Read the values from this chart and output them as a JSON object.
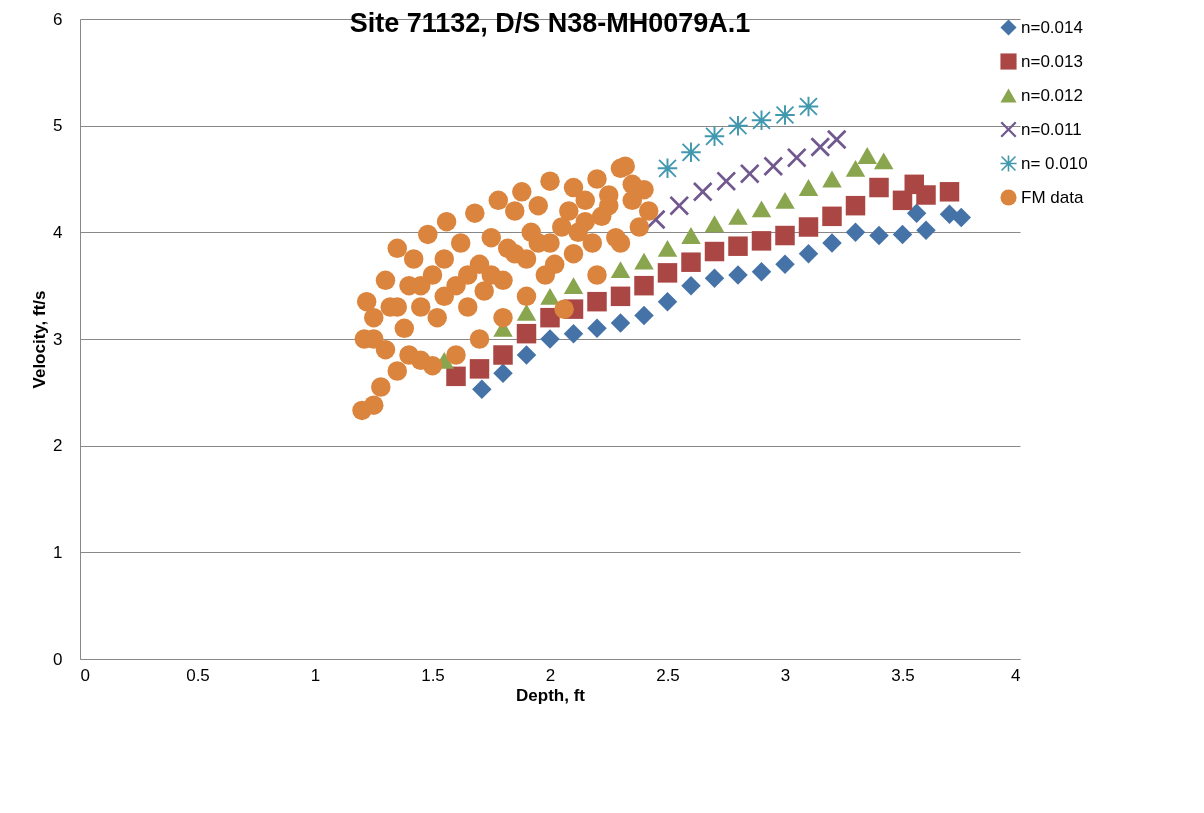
{
  "chart_data": {
    "type": "scatter",
    "title": "Site 71132, D/S  N38-MH0079A.1",
    "xlabel": "Depth, ft",
    "ylabel": "Velocity, ft/s",
    "xlim": [
      0,
      4
    ],
    "xticks": [
      0,
      0.5,
      1,
      1.5,
      2,
      2.5,
      3,
      3.5,
      4
    ],
    "ylim": [
      0,
      6
    ],
    "yticks": [
      0,
      1,
      2,
      3,
      4,
      5,
      6
    ],
    "grid": "y",
    "legend": "right",
    "series": [
      {
        "name": "n=0.014",
        "color": "#4572a7",
        "marker": "diamond",
        "x": [
          1.71,
          1.8,
          1.9,
          2.0,
          2.1,
          2.2,
          2.3,
          2.4,
          2.5,
          2.6,
          2.7,
          2.8,
          2.9,
          3.0,
          3.1,
          3.2,
          3.3,
          3.4,
          3.5,
          3.56,
          3.6,
          3.7,
          3.75
        ],
        "values": [
          2.53,
          2.68,
          2.85,
          3.0,
          3.05,
          3.1,
          3.15,
          3.22,
          3.35,
          3.5,
          3.57,
          3.6,
          3.63,
          3.7,
          3.8,
          3.9,
          4.0,
          3.97,
          3.98,
          4.18,
          4.02,
          4.17,
          4.14
        ]
      },
      {
        "name": "n=0.013",
        "color": "#aa4643",
        "marker": "square",
        "x": [
          1.6,
          1.7,
          1.8,
          1.9,
          2.0,
          2.1,
          2.2,
          2.3,
          2.4,
          2.5,
          2.6,
          2.7,
          2.8,
          2.9,
          3.0,
          3.1,
          3.2,
          3.3,
          3.4,
          3.5,
          3.55,
          3.6,
          3.7
        ],
        "values": [
          2.65,
          2.72,
          2.85,
          3.05,
          3.2,
          3.28,
          3.35,
          3.4,
          3.5,
          3.62,
          3.72,
          3.82,
          3.87,
          3.92,
          3.97,
          4.05,
          4.15,
          4.25,
          4.42,
          4.3,
          4.45,
          4.35,
          4.38
        ]
      },
      {
        "name": "n=0.012",
        "color": "#89a54e",
        "marker": "triangle",
        "x": [
          1.55,
          1.8,
          1.9,
          2.0,
          2.1,
          2.3,
          2.4,
          2.5,
          2.6,
          2.7,
          2.8,
          2.9,
          3.0,
          3.1,
          3.2,
          3.3,
          3.35,
          3.42
        ],
        "values": [
          2.8,
          3.1,
          3.25,
          3.4,
          3.5,
          3.65,
          3.73,
          3.85,
          3.97,
          4.08,
          4.15,
          4.22,
          4.3,
          4.42,
          4.5,
          4.6,
          4.72,
          4.67
        ]
      },
      {
        "name": "n=0.011",
        "color": "#71588f",
        "marker": "cross",
        "x": [
          2.45,
          2.55,
          2.65,
          2.75,
          2.85,
          2.95,
          3.05,
          3.15,
          3.22
        ],
        "values": [
          4.12,
          4.25,
          4.38,
          4.48,
          4.55,
          4.62,
          4.7,
          4.8,
          4.87
        ]
      },
      {
        "name": "n= 0.010",
        "color": "#4198af",
        "marker": "star",
        "x": [
          2.5,
          2.6,
          2.7,
          2.8,
          2.9,
          3.0,
          3.1
        ],
        "values": [
          4.6,
          4.75,
          4.9,
          5.0,
          5.05,
          5.1,
          5.18
        ]
      },
      {
        "name": "FM data",
        "color": "#db843d",
        "marker": "circle",
        "x": [
          1.2,
          1.21,
          1.22,
          1.25,
          1.25,
          1.28,
          1.3,
          1.3,
          1.32,
          1.35,
          1.35,
          1.38,
          1.4,
          1.4,
          1.42,
          1.45,
          1.45,
          1.48,
          1.5,
          1.5,
          1.52,
          1.55,
          1.56,
          1.6,
          1.6,
          1.62,
          1.65,
          1.68,
          1.7,
          1.7,
          1.72,
          1.75,
          1.78,
          1.8,
          1.8,
          1.82,
          1.85,
          1.88,
          1.9,
          1.9,
          1.92,
          1.95,
          1.98,
          2.0,
          2.0,
          2.02,
          2.06,
          2.08,
          2.1,
          2.1,
          2.12,
          2.15,
          2.18,
          2.2,
          2.2,
          2.22,
          2.25,
          2.28,
          2.3,
          2.3,
          2.32,
          2.35,
          2.38,
          2.4,
          2.42,
          1.25,
          1.35,
          1.45,
          1.55,
          1.65,
          1.75,
          1.85,
          1.95,
          2.05,
          2.15,
          2.25,
          2.35
        ],
        "values": [
          2.33,
          3.0,
          3.35,
          2.38,
          3.2,
          2.55,
          3.55,
          2.9,
          3.3,
          3.85,
          2.7,
          3.1,
          3.5,
          2.85,
          3.75,
          3.3,
          2.8,
          3.98,
          3.6,
          2.75,
          3.2,
          3.75,
          4.1,
          3.5,
          2.85,
          3.9,
          3.3,
          4.18,
          3.7,
          3.0,
          3.45,
          3.95,
          4.3,
          3.55,
          3.2,
          3.85,
          4.2,
          4.38,
          3.75,
          3.4,
          4.0,
          4.25,
          3.6,
          4.48,
          3.9,
          3.7,
          3.28,
          4.2,
          4.42,
          3.8,
          4.0,
          4.3,
          3.9,
          4.5,
          3.6,
          4.15,
          4.35,
          3.95,
          4.6,
          3.9,
          4.62,
          4.3,
          4.05,
          4.4,
          4.2,
          3.0,
          3.3,
          3.5,
          3.4,
          3.6,
          3.6,
          3.8,
          3.9,
          4.05,
          4.1,
          4.25,
          4.45
        ]
      }
    ]
  }
}
